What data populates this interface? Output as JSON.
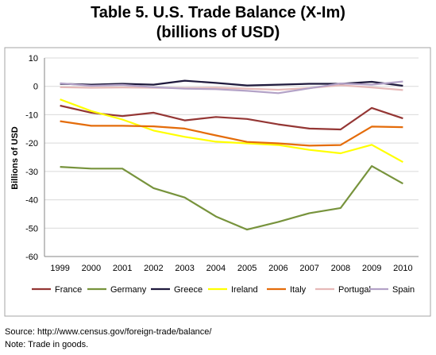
{
  "title_line1": "Table 5. U.S. Trade Balance (X-Im)",
  "title_line2": "(billions of USD)",
  "source_note": "Source: http://www.census.gov/foreign-trade/balance/",
  "trade_note": "Note: Trade in goods.",
  "chart_data": {
    "type": "line",
    "title": "Table 5. U.S. Trade Balance (X-Im) (billions of USD)",
    "xlabel": "",
    "ylabel": "Billions of USD",
    "x": [
      "1999",
      "2000",
      "2001",
      "2002",
      "2003",
      "2004",
      "2005",
      "2006",
      "2007",
      "2008",
      "2009",
      "2010"
    ],
    "ylim": [
      -60,
      10
    ],
    "yticks": [
      10,
      0,
      -10,
      -20,
      -30,
      -40,
      -50,
      -60
    ],
    "grid": "horizontal",
    "legend_position": "bottom",
    "series": [
      {
        "name": "France",
        "color": "#943634",
        "values": [
          -6.8,
          -9.3,
          -10.5,
          -9.3,
          -12.0,
          -10.8,
          -11.5,
          -13.4,
          -14.9,
          -15.2,
          -7.6,
          -11.3
        ]
      },
      {
        "name": "Germany",
        "color": "#77933C",
        "values": [
          -28.4,
          -29.0,
          -29.0,
          -35.9,
          -39.2,
          -45.9,
          -50.5,
          -47.8,
          -44.7,
          -42.9,
          -28.1,
          -34.3
        ]
      },
      {
        "name": "Greece",
        "color": "#1F1A3D",
        "values": [
          0.9,
          0.6,
          0.9,
          0.6,
          2.0,
          1.2,
          0.3,
          0.6,
          0.9,
          0.9,
          1.6,
          0.2
        ]
      },
      {
        "name": "Ireland",
        "color": "#FFFF00",
        "values": [
          -4.6,
          -8.7,
          -11.7,
          -15.6,
          -17.8,
          -19.5,
          -20.1,
          -20.7,
          -22.4,
          -23.6,
          -20.6,
          -26.7
        ]
      },
      {
        "name": "Italy",
        "color": "#E46C0A",
        "values": [
          -12.3,
          -13.9,
          -13.9,
          -14.1,
          -14.9,
          -17.3,
          -19.6,
          -20.1,
          -20.9,
          -20.7,
          -14.2,
          -14.4
        ]
      },
      {
        "name": "Portugal",
        "color": "#E6B9B8",
        "values": [
          -0.3,
          -0.5,
          -0.4,
          -0.5,
          -0.6,
          -0.5,
          -0.8,
          -1.2,
          -0.6,
          0.4,
          -0.4,
          -1.3
        ]
      },
      {
        "name": "Spain",
        "color": "#B3A2C7",
        "values": [
          1.1,
          0.2,
          0.5,
          -0.3,
          -0.8,
          -1.0,
          -1.6,
          -2.4,
          -0.7,
          1.0,
          0.6,
          1.7
        ]
      }
    ]
  }
}
